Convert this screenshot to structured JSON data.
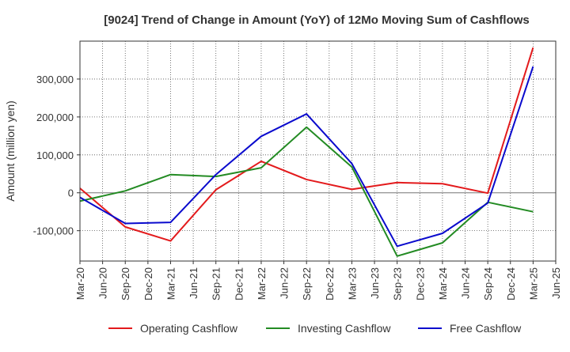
{
  "chart_data": {
    "type": "line",
    "title": "[9024]  Trend of Change in Amount (YoY) of 12Mo Moving Sum of Cashflows",
    "xlabel": "",
    "ylabel": "Amount (million yen)",
    "ylim": [
      -180000,
      400000
    ],
    "yticks": [
      -100000,
      0,
      100000,
      200000,
      300000
    ],
    "ytick_labels": [
      "-100,000",
      "0",
      "100,000",
      "200,000",
      "300,000"
    ],
    "xticks": [
      "Mar-20",
      "Jun-20",
      "Sep-20",
      "Dec-20",
      "Mar-21",
      "Jun-21",
      "Sep-21",
      "Dec-21",
      "Mar-22",
      "Jun-22",
      "Sep-22",
      "Dec-22",
      "Mar-23",
      "Jun-23",
      "Sep-23",
      "Dec-23",
      "Mar-24",
      "Jun-24",
      "Sep-24",
      "Dec-24",
      "Mar-25",
      "Jun-25"
    ],
    "x": [
      "Mar-20",
      "Sep-20",
      "Mar-21",
      "Sep-21",
      "Mar-22",
      "Sep-22",
      "Mar-23",
      "Sep-23",
      "Mar-24",
      "Sep-24",
      "Mar-25"
    ],
    "grid": true,
    "legend": "bottom",
    "series": [
      {
        "name": "Operating Cashflow",
        "color": "#e31a1c",
        "values": [
          12000,
          -90000,
          -127000,
          8000,
          83000,
          35000,
          9000,
          27000,
          24000,
          -1000,
          383000
        ]
      },
      {
        "name": "Investing Cashflow",
        "color": "#238b23",
        "values": [
          -22000,
          5000,
          48000,
          43000,
          66000,
          173000,
          68000,
          -167000,
          -132000,
          -25000,
          -50000
        ]
      },
      {
        "name": "Free Cashflow",
        "color": "#0a0acd",
        "values": [
          -12000,
          -81000,
          -78000,
          48000,
          149000,
          208000,
          77000,
          -141000,
          -107000,
          -27000,
          333000
        ]
      }
    ]
  }
}
